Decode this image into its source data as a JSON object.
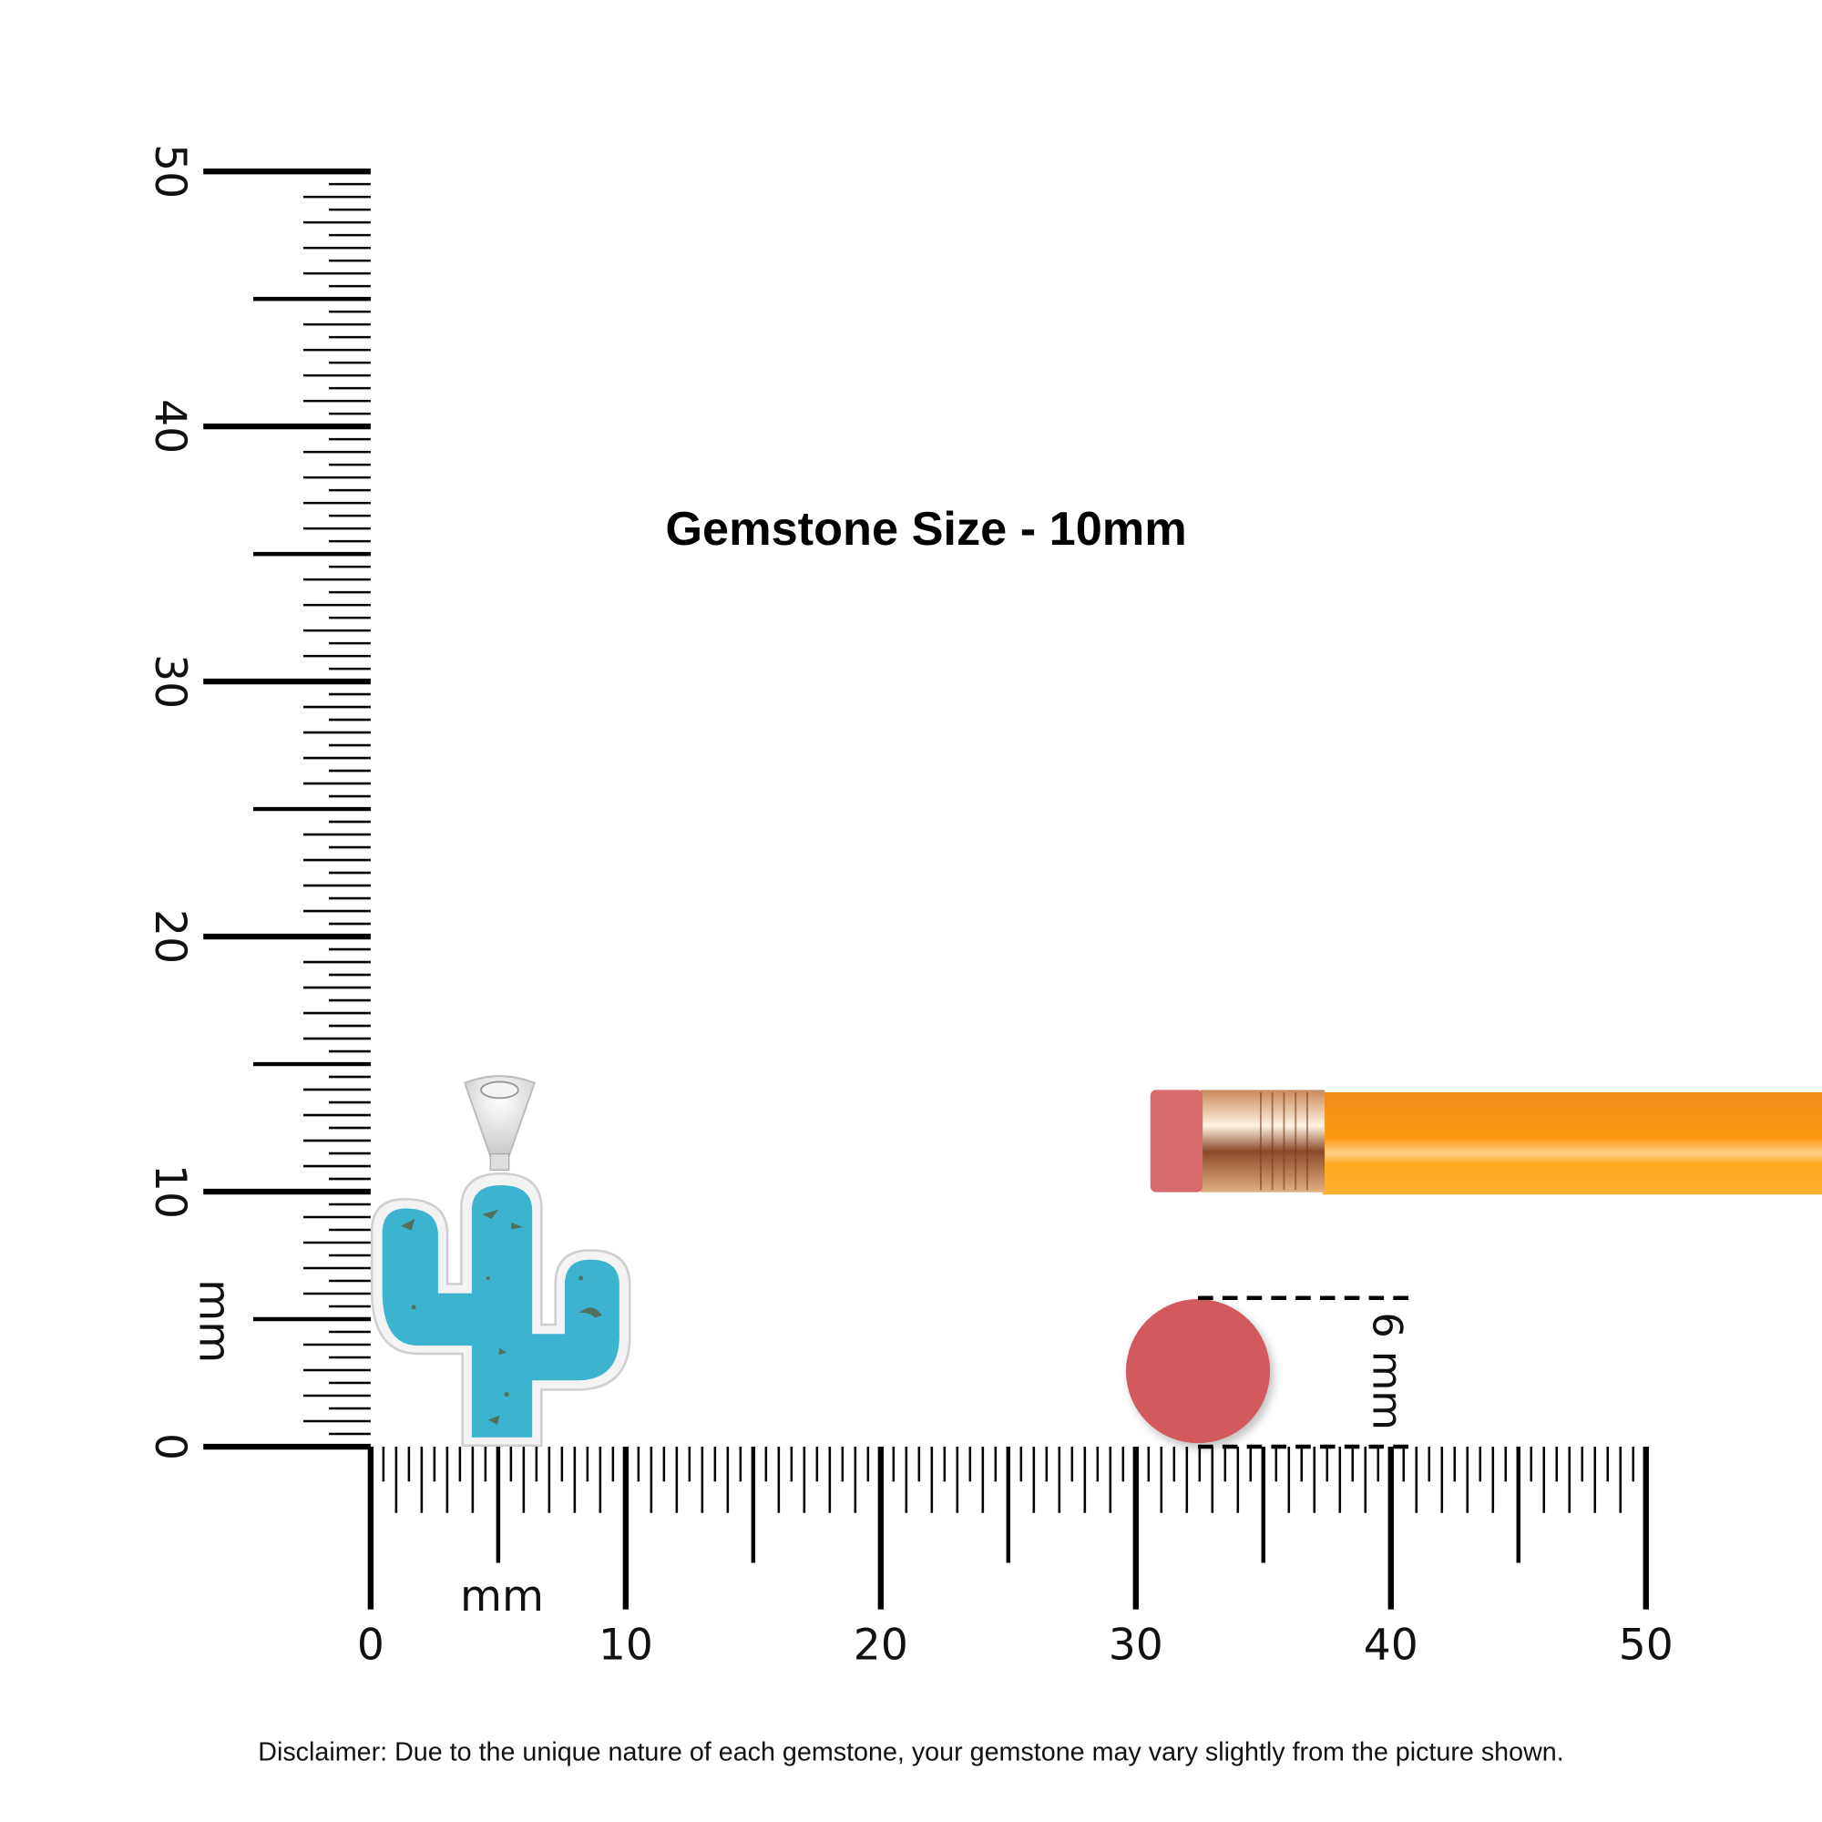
{
  "title": "Gemstone Size - 10mm",
  "disclaimer": "Disclaimer: Due to the unique nature of each gemstone, your gemstone may vary slightly from the picture shown.",
  "ruler": {
    "unit_label": "mm",
    "range_mm": [
      0,
      50
    ],
    "major_labels": [
      "0",
      "10",
      "20",
      "30",
      "40",
      "50"
    ]
  },
  "comparison": {
    "object": "pencil eraser",
    "size_label": "6 mm",
    "eraser_color": "#d25a5c",
    "pencil_color": "#f7931e"
  },
  "gemstone": {
    "shape": "cactus",
    "stone": "turquoise",
    "stone_color": "#3cb4cf",
    "metal_color": "#eeeeee"
  }
}
